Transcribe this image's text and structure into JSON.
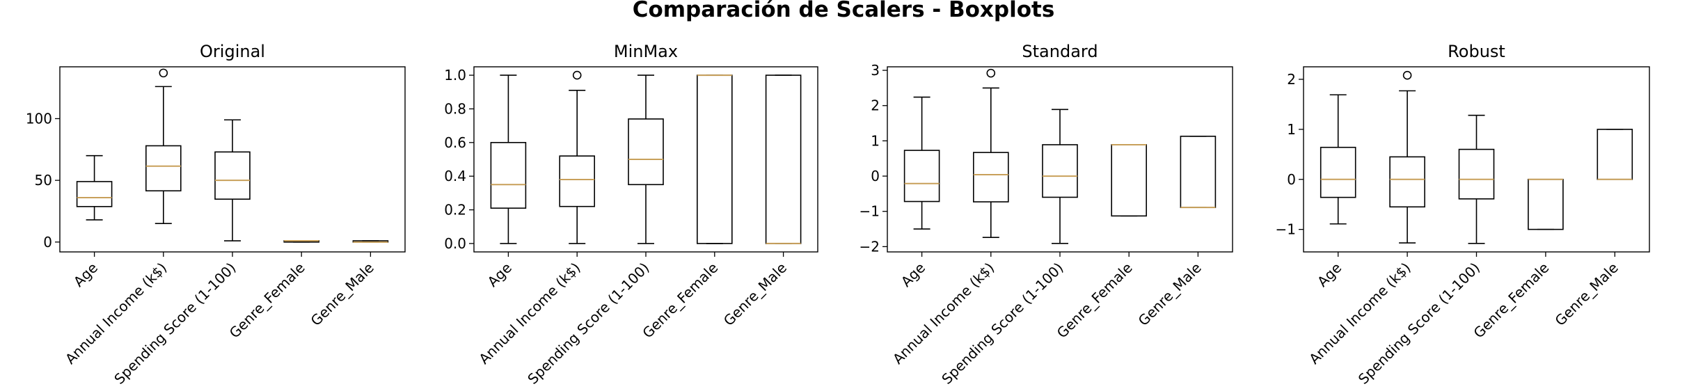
{
  "figure": {
    "title": "Comparación de Scalers - Boxplots"
  },
  "colors": {
    "box": "#000000",
    "median": "#C8A05A",
    "flier": "#000000"
  },
  "chart_data": [
    {
      "type": "boxplot",
      "title": "Original",
      "categories": [
        "Age",
        "Annual Income (k$)",
        "Spending Score (1-100)",
        "Genre_Female",
        "Genre_Male"
      ],
      "ylim": [
        -8,
        142
      ],
      "yticks": [
        0,
        50,
        100
      ],
      "ytick_labels": [
        "0",
        "50",
        "100"
      ],
      "boxes": [
        {
          "whislo": 18,
          "q1": 28.75,
          "med": 36,
          "q3": 49,
          "whishi": 70,
          "fliers": []
        },
        {
          "whislo": 15,
          "q1": 41.5,
          "med": 61.5,
          "q3": 78,
          "whishi": 126,
          "fliers": [
            137
          ]
        },
        {
          "whislo": 1,
          "q1": 34.75,
          "med": 50,
          "q3": 73,
          "whishi": 99,
          "fliers": []
        },
        {
          "whislo": 0,
          "q1": 0,
          "med": 1,
          "q3": 1,
          "whishi": 1,
          "fliers": []
        },
        {
          "whislo": 0,
          "q1": 0,
          "med": 0,
          "q3": 1,
          "whishi": 1,
          "fliers": []
        }
      ]
    },
    {
      "type": "boxplot",
      "title": "MinMax",
      "categories": [
        "Age",
        "Annual Income (k$)",
        "Spending Score (1-100)",
        "Genre_Female",
        "Genre_Male"
      ],
      "ylim": [
        -0.05,
        1.05
      ],
      "yticks": [
        0.0,
        0.2,
        0.4,
        0.6,
        0.8,
        1.0
      ],
      "ytick_labels": [
        "0.0",
        "0.2",
        "0.4",
        "0.6",
        "0.8",
        "1.0"
      ],
      "boxes": [
        {
          "whislo": 0,
          "q1": 0.21,
          "med": 0.35,
          "q3": 0.6,
          "whishi": 1.0,
          "fliers": []
        },
        {
          "whislo": 0,
          "q1": 0.22,
          "med": 0.38,
          "q3": 0.52,
          "whishi": 0.91,
          "fliers": [
            1.0
          ]
        },
        {
          "whislo": 0,
          "q1": 0.35,
          "med": 0.5,
          "q3": 0.74,
          "whishi": 1.0,
          "fliers": []
        },
        {
          "whislo": 0,
          "q1": 0,
          "med": 1,
          "q3": 1,
          "whishi": 1,
          "fliers": []
        },
        {
          "whislo": 0,
          "q1": 0,
          "med": 0,
          "q3": 1,
          "whishi": 1,
          "fliers": []
        }
      ]
    },
    {
      "type": "boxplot",
      "title": "Standard",
      "categories": [
        "Age",
        "Annual Income (k$)",
        "Spending Score (1-100)",
        "Genre_Female",
        "Genre_Male"
      ],
      "ylim": [
        -2.15,
        3.1
      ],
      "yticks": [
        -2,
        -1,
        0,
        1,
        2,
        3
      ],
      "ytick_labels": [
        "−2",
        "−1",
        "0",
        "1",
        "2",
        "3"
      ],
      "boxes": [
        {
          "whislo": -1.5,
          "q1": -0.72,
          "med": -0.21,
          "q3": 0.73,
          "whishi": 2.24,
          "fliers": []
        },
        {
          "whislo": -1.74,
          "q1": -0.73,
          "med": 0.04,
          "q3": 0.67,
          "whishi": 2.5,
          "fliers": [
            2.92
          ]
        },
        {
          "whislo": -1.91,
          "q1": -0.6,
          "med": 0.0,
          "q3": 0.89,
          "whishi": 1.89,
          "fliers": []
        },
        {
          "whislo": -1.13,
          "q1": -1.13,
          "med": 0.89,
          "q3": 0.89,
          "whishi": 0.89,
          "fliers": []
        },
        {
          "whislo": -0.89,
          "q1": -0.89,
          "med": -0.89,
          "q3": 1.13,
          "whishi": 1.13,
          "fliers": []
        }
      ]
    },
    {
      "type": "boxplot",
      "title": "Robust",
      "categories": [
        "Age",
        "Annual Income (k$)",
        "Spending Score (1-100)",
        "Genre_Female",
        "Genre_Male"
      ],
      "ylim": [
        -1.45,
        2.25
      ],
      "yticks": [
        -1,
        0,
        1,
        2
      ],
      "ytick_labels": [
        "−1",
        "0",
        "1",
        "2"
      ],
      "boxes": [
        {
          "whislo": -0.89,
          "q1": -0.36,
          "med": 0,
          "q3": 0.64,
          "whishi": 1.69,
          "fliers": []
        },
        {
          "whislo": -1.27,
          "q1": -0.55,
          "med": 0,
          "q3": 0.45,
          "whishi": 1.77,
          "fliers": [
            2.08
          ]
        },
        {
          "whislo": -1.28,
          "q1": -0.39,
          "med": 0,
          "q3": 0.6,
          "whishi": 1.28,
          "fliers": []
        },
        {
          "whislo": -1,
          "q1": -1,
          "med": 0,
          "q3": 0,
          "whishi": 0,
          "fliers": []
        },
        {
          "whislo": 0,
          "q1": 0,
          "med": 0,
          "q3": 1,
          "whishi": 1,
          "fliers": []
        }
      ]
    }
  ]
}
